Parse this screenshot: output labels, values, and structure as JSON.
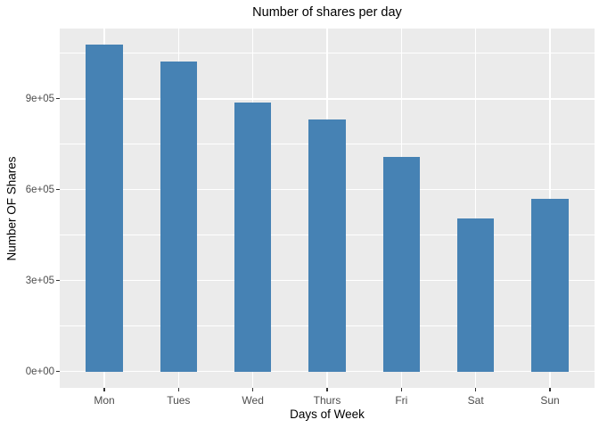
{
  "chart_data": {
    "type": "bar",
    "title": "Number of shares per day",
    "xlabel": "Days of Week",
    "ylabel": "Number OF Shares",
    "categories": [
      "Mon",
      "Tues",
      "Wed",
      "Thurs",
      "Fri",
      "Sat",
      "Sun"
    ],
    "values": [
      1080000,
      1022000,
      889000,
      833000,
      707000,
      505000,
      571000
    ],
    "y_major_ticks": [
      {
        "label": "0e+00",
        "value": 0
      },
      {
        "label": "3e+05",
        "value": 300000
      },
      {
        "label": "6e+05",
        "value": 600000
      },
      {
        "label": "9e+05",
        "value": 900000
      }
    ],
    "y_minor_ticks": [
      150000,
      450000,
      750000,
      1050000
    ],
    "ylim": [
      -54000,
      1132000
    ],
    "bar_width_fraction": 0.5,
    "x_expansion": 0.6,
    "legend": "none",
    "grid": "white major+minor horizontal, white major vertical on gray panel",
    "colors": {
      "bar": "#4682B4",
      "panel_bg": "#EBEBEB",
      "grid": "#FFFFFF",
      "axis_text": "#4D4D4D",
      "axis_title": "#000000",
      "tick_mark": "#333333",
      "background": "#FFFFFF"
    }
  }
}
